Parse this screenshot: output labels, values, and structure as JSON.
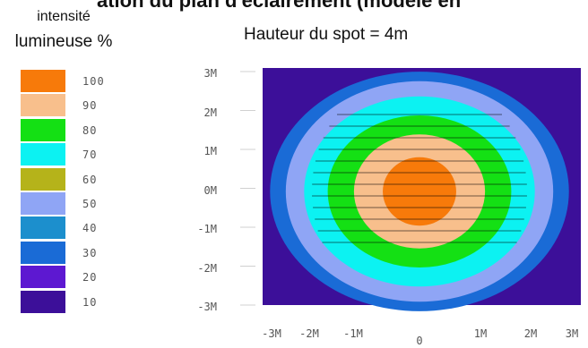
{
  "header_cut_text": "ation du plan d'éclairement (modèle en",
  "legend": {
    "title_line1": "intensité",
    "title_line2": "lumineuse %"
  },
  "chart_data": {
    "type": "heatmap",
    "title": "Hauteur du spot = 4m",
    "xlabel": "",
    "ylabel": "",
    "x_ticks": [
      "-3M",
      "-2M",
      "-1M",
      "0",
      "1M",
      "2M",
      "3M"
    ],
    "y_ticks": [
      "3M",
      "2M",
      "1M",
      "0M",
      "-1M",
      "-2M",
      "-3M"
    ],
    "xlim": [
      -3,
      3
    ],
    "ylim": [
      -3,
      3
    ],
    "legend_position": "left",
    "levels": [
      {
        "value": "100",
        "color": "#f77a0a",
        "rx": 0.7,
        "ry": 0.9
      },
      {
        "value": "90",
        "color": "#f8bf8c",
        "rx": 1.25,
        "ry": 1.5
      },
      {
        "value": "80",
        "color": "#14e014",
        "rx": 1.75,
        "ry": 2.0
      },
      {
        "value": "70",
        "color": "#0cf2f2",
        "rx": 2.2,
        "ry": 2.5
      },
      {
        "value": "60",
        "color": "#b5b31a",
        "rx": null,
        "ry": null
      },
      {
        "value": "50",
        "color": "#8fa5f5",
        "rx": 2.55,
        "ry": 2.9
      },
      {
        "value": "40",
        "color": "#1c8fcd",
        "rx": null,
        "ry": null
      },
      {
        "value": "30",
        "color": "#1a6bd6",
        "rx": 2.85,
        "ry": 3.15
      },
      {
        "value": "20",
        "color": "#5d18d1",
        "rx": null,
        "ry": null
      },
      {
        "value": "10",
        "color": "#3c0f99",
        "rx": null,
        "ry": null
      }
    ]
  }
}
